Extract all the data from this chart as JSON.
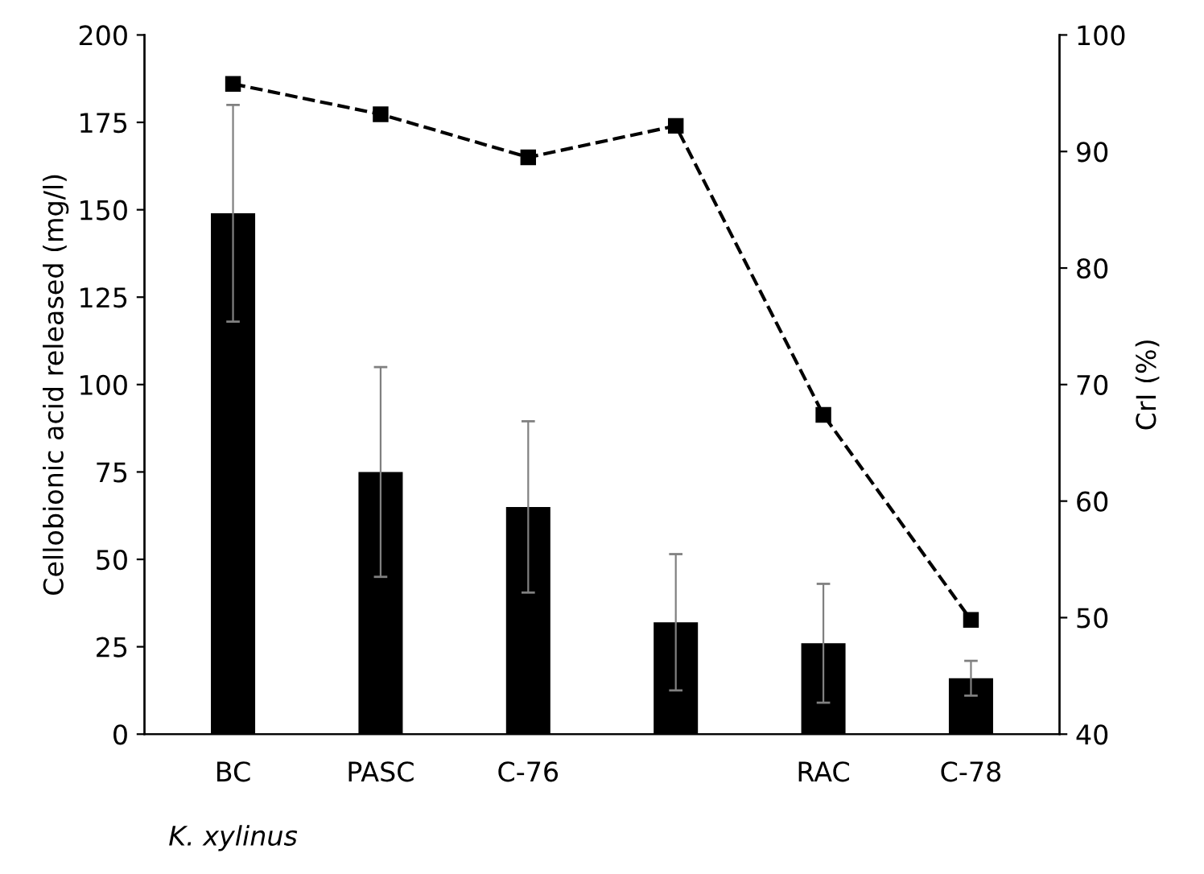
{
  "chart_data": {
    "type": "bar",
    "categories": [
      "BC",
      "PASC",
      "C-76",
      null,
      "RAC",
      "C-78"
    ],
    "ylabel": "Cellobionic acid released (mg/l)",
    "y2label": "CrI (%)",
    "annotations": [
      "K. xylinus"
    ],
    "ylim": [
      0,
      200
    ],
    "yticks": [
      0,
      25,
      50,
      75,
      100,
      125,
      150,
      175,
      200
    ],
    "y2lim": [
      40,
      100
    ],
    "y2ticks": [
      40,
      50,
      60,
      70,
      80,
      90,
      100
    ],
    "grid": false,
    "legend": false,
    "series": [
      {
        "color": "#000000",
        "values": [
          149,
          75,
          65,
          32,
          26,
          16
        ],
        "errors": [
          31,
          30,
          24.5,
          19.5,
          17,
          5
        ]
      },
      {
        "type": "line",
        "axis": "y2",
        "color": "#000000",
        "marker": "square",
        "line_style": "dashed",
        "values": [
          95.8,
          93.2,
          89.5,
          92.2,
          67.4,
          49.8
        ]
      }
    ]
  }
}
